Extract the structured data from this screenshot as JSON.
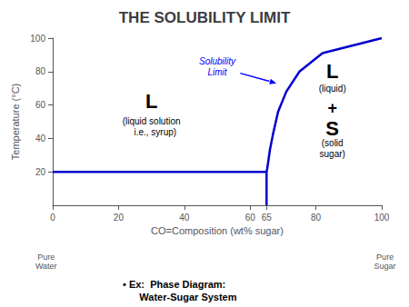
{
  "chart_data": {
    "type": "line",
    "title": "THE SOLUBILITY LIMIT",
    "xlabel": "CO=Composition (wt% sugar)",
    "ylabel": "Temperature (°C)",
    "xlim": [
      0,
      100
    ],
    "ylim": [
      0,
      100
    ],
    "xticks": [
      0,
      20,
      40,
      60,
      65,
      80,
      100
    ],
    "yticks": [
      20,
      40,
      60,
      80,
      100
    ],
    "grid": false,
    "series": [
      {
        "color": "#0000cc",
        "x": [
          0,
          65
        ],
        "values": [
          20,
          20
        ]
      },
      {
        "color": "#0000cc",
        "x": [
          65,
          65
        ],
        "values": [
          0,
          20
        ]
      },
      {
        "color": "#0000cc",
        "x": [
          65,
          65.2,
          65.5,
          66,
          67,
          68.5,
          71,
          75,
          82,
          100
        ],
        "values": [
          20,
          22,
          26,
          33,
          43,
          56,
          68,
          80,
          91,
          100
        ]
      }
    ],
    "annotations": [
      {
        "text": "L",
        "x": 30,
        "y": 62
      },
      {
        "text": "(liquid solution\n   i.e., syrup)",
        "x": 30,
        "y": 47
      },
      {
        "text": "L",
        "x": 85,
        "y": 80
      },
      {
        "text": "(liquid)",
        "x": 85,
        "y": 70
      },
      {
        "text": "+",
        "x": 85,
        "y": 58
      },
      {
        "text": "S",
        "x": 85,
        "y": 46
      },
      {
        "text": "(solid\nsugar)",
        "x": 85,
        "y": 34
      },
      {
        "text": "Solubility\nLimit",
        "x": 50,
        "y": 83,
        "color": "#0000ff",
        "arrow": {
          "from": [
            57,
            79
          ],
          "to": [
            68,
            73
          ]
        }
      },
      {
        "text": "Pure\nWater",
        "x": -2,
        "y": -28,
        "color": "#555555"
      },
      {
        "text": "Pure\nSugar",
        "x": 101,
        "y": -28,
        "color": "#555555"
      }
    ],
    "caption": "• Ex:  Phase Diagram:\n      Water-Sugar System"
  }
}
